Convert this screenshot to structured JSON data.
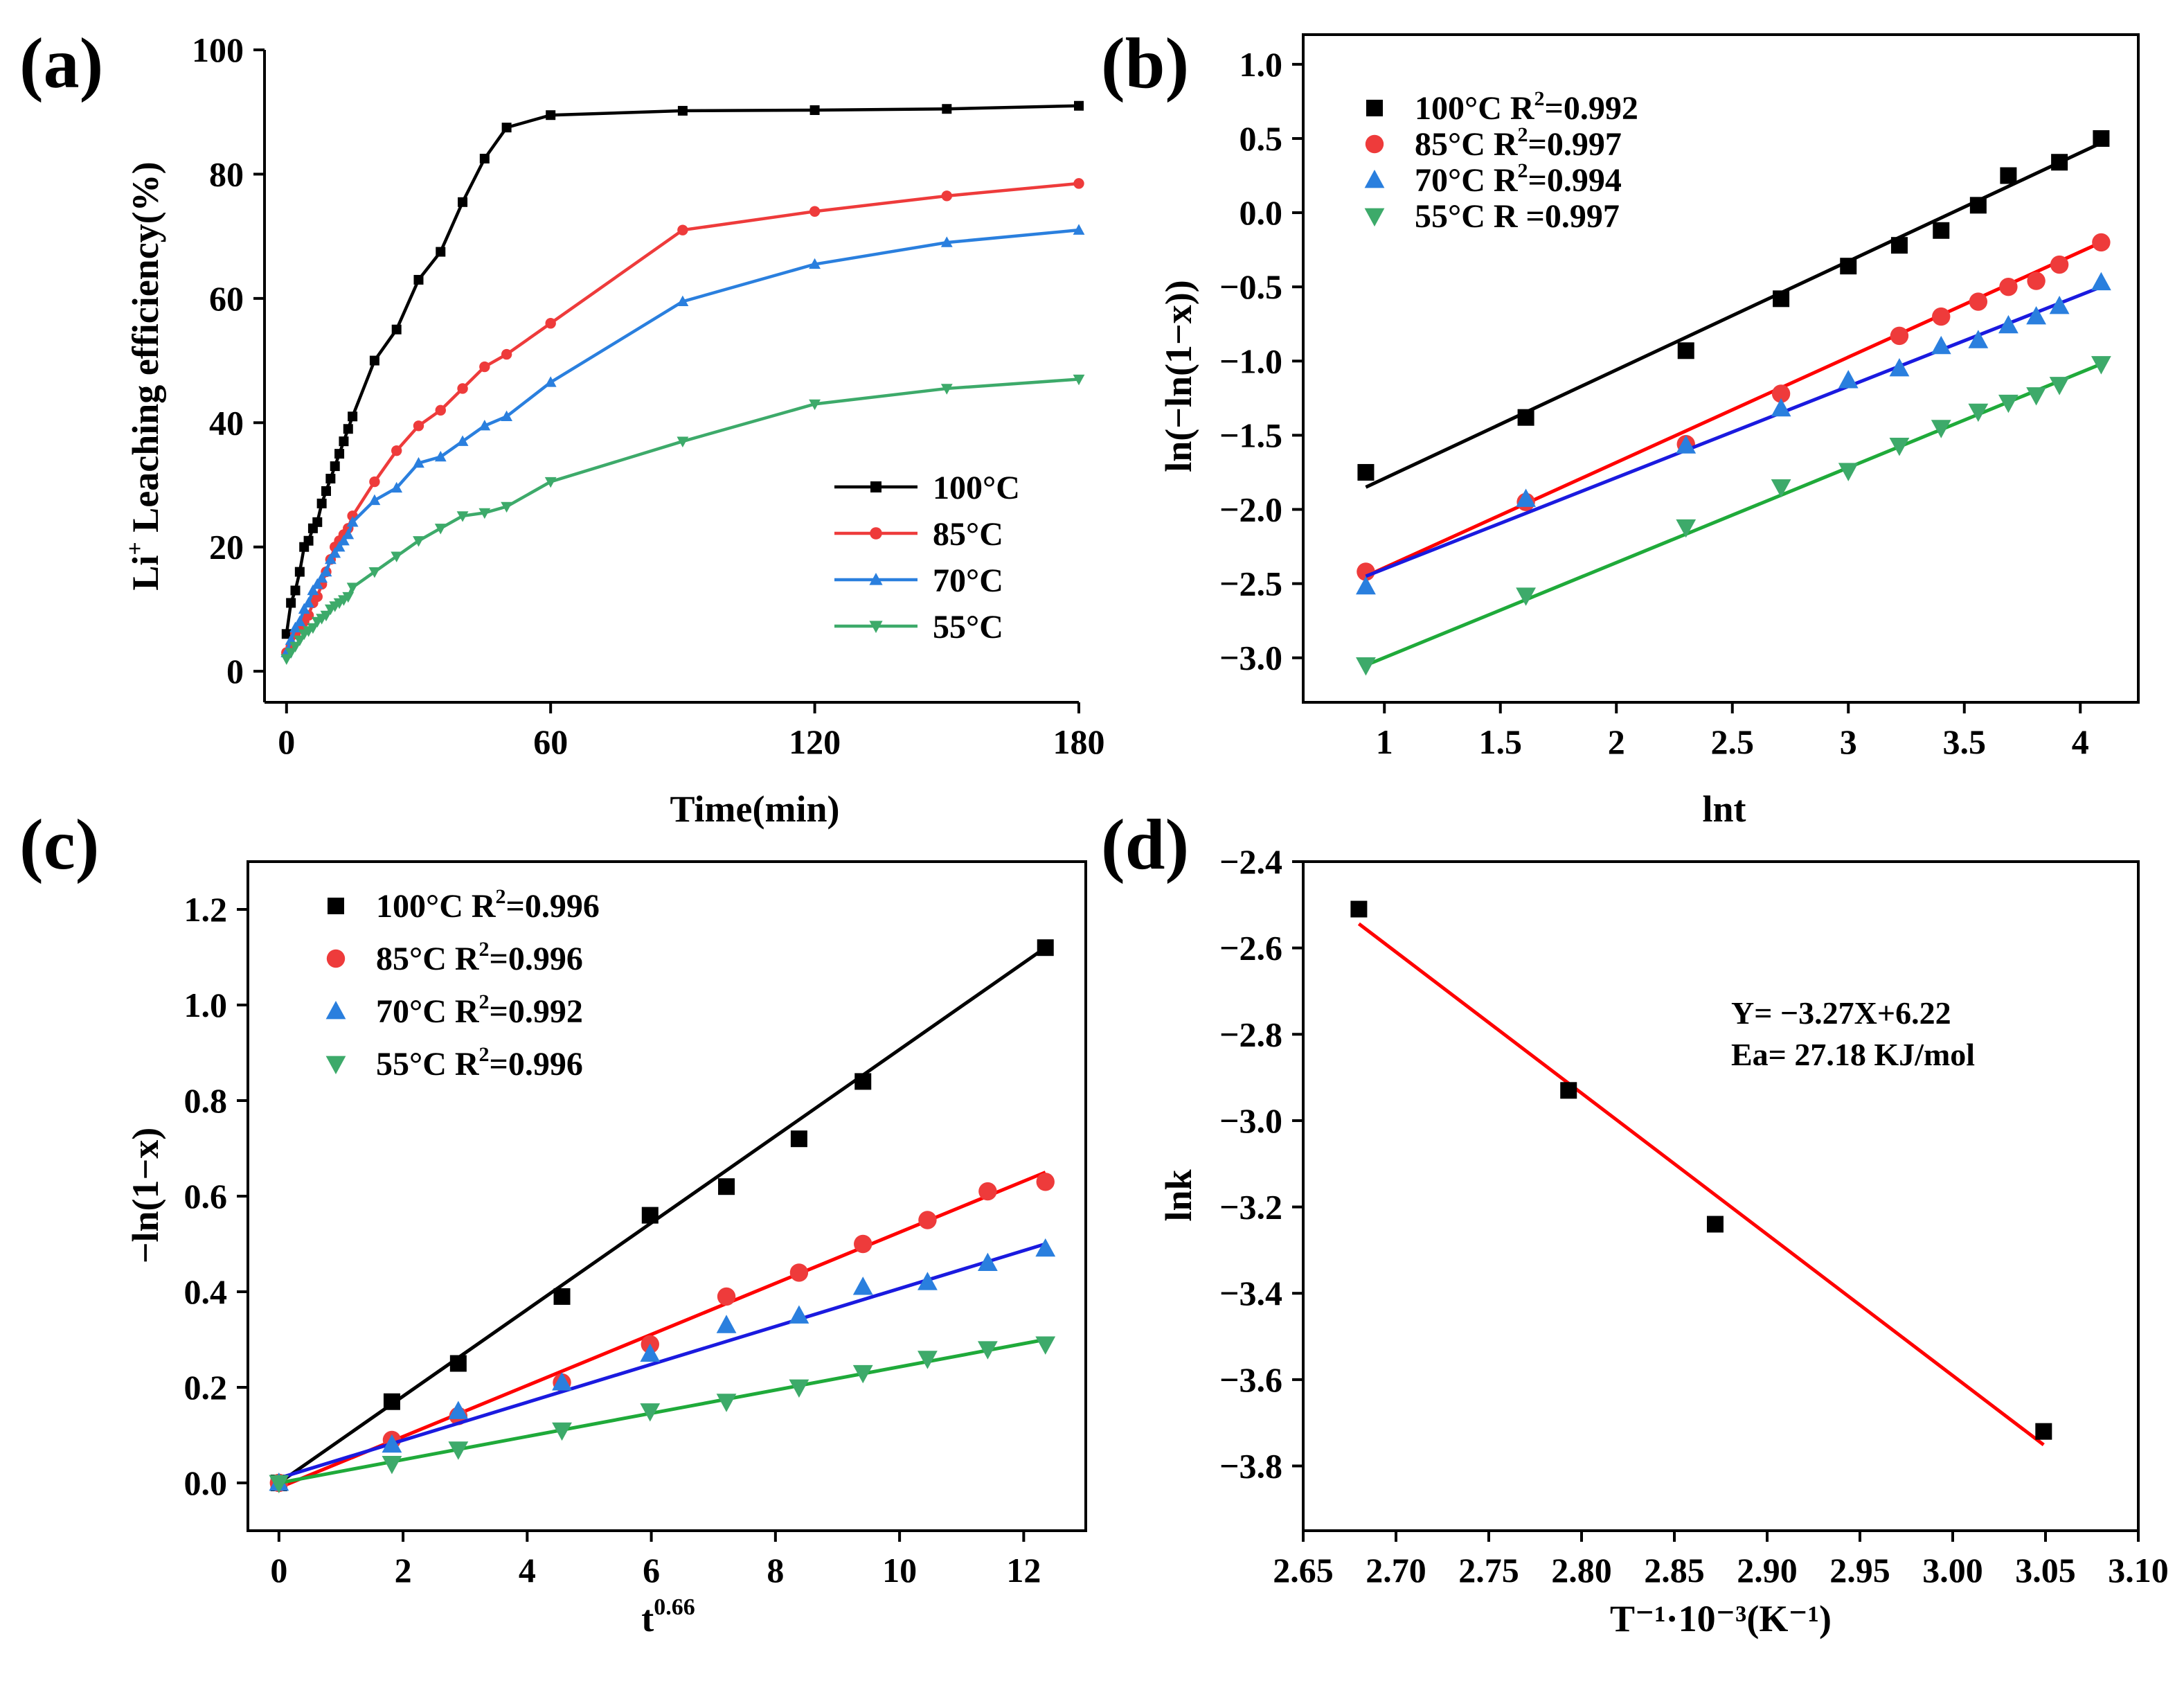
{
  "figure": {
    "colors": {
      "100C": "#000000",
      "85C": "#ee3b3b",
      "70C": "#2a7fde",
      "55C": "#3daa6a",
      "fit_85C": "#ff0000",
      "fit_70C": "#1a1adf",
      "fit_55C": "#1faa3a",
      "arrhenius_fit": "#ff0000"
    }
  },
  "chart_data": [
    {
      "id": "a",
      "panel_label": "(a)",
      "type": "line",
      "xlabel": "Time(min)",
      "ylabel": "Li⁺ Leaching efficiency(%)",
      "ylabel_base": "Li",
      "ylabel_sup": "+",
      "ylabel_rest": " Leaching efficiency(%)",
      "xlim": [
        -5,
        180
      ],
      "ylim": [
        -5,
        100
      ],
      "xticks": [
        0,
        60,
        120,
        180
      ],
      "yticks": [
        0,
        20,
        40,
        60,
        80,
        100
      ],
      "grid": false,
      "legend_position": "bottom-right",
      "series": [
        {
          "name": "100°C",
          "color_key": "100C",
          "marker": "square",
          "x": [
            0,
            1,
            2,
            3,
            4,
            5,
            6,
            7,
            8,
            9,
            10,
            11,
            12,
            13,
            14,
            15,
            20,
            25,
            30,
            35,
            40,
            45,
            50,
            60,
            90,
            120,
            150,
            180
          ],
          "y": [
            6,
            11,
            13,
            16,
            20,
            21,
            23,
            24,
            27,
            29,
            31,
            33,
            35,
            37,
            39,
            41,
            50,
            55,
            63,
            67.5,
            75.5,
            82.5,
            87.5,
            89.5,
            90.2,
            90.3,
            90.5,
            91
          ]
        },
        {
          "name": "85°C",
          "color_key": "85C",
          "marker": "circle",
          "x": [
            0,
            1,
            2,
            3,
            4,
            5,
            6,
            7,
            8,
            9,
            10,
            11,
            12,
            13,
            14,
            15,
            20,
            25,
            30,
            35,
            40,
            45,
            50,
            60,
            90,
            120,
            150,
            180
          ],
          "y": [
            3,
            4,
            6,
            7,
            8,
            9,
            11,
            12,
            14,
            16,
            18,
            20,
            21,
            22,
            23,
            25,
            30.5,
            35.5,
            39.5,
            42,
            45.5,
            49,
            51,
            56,
            71,
            74,
            76.5,
            78.5
          ]
        },
        {
          "name": "70°C",
          "color_key": "70C",
          "marker": "triangle-up",
          "x": [
            0,
            1,
            2,
            3,
            4,
            5,
            6,
            7,
            8,
            9,
            10,
            11,
            12,
            13,
            14,
            15,
            20,
            25,
            30,
            35,
            40,
            45,
            50,
            60,
            90,
            120,
            150,
            180
          ],
          "y": [
            3,
            5,
            7,
            8,
            10,
            11,
            13,
            14,
            15,
            16,
            18,
            19,
            20,
            21,
            22,
            24,
            27.5,
            29.5,
            33.5,
            34.5,
            37,
            39.5,
            41,
            46.5,
            59.5,
            65.5,
            69,
            71
          ]
        },
        {
          "name": "55°C",
          "color_key": "55C",
          "marker": "triangle-down",
          "x": [
            0,
            1,
            2,
            3,
            4,
            5,
            6,
            7,
            8,
            9,
            10,
            11,
            12,
            13,
            14,
            15,
            20,
            25,
            30,
            35,
            40,
            45,
            50,
            60,
            90,
            120,
            150,
            180
          ],
          "y": [
            2,
            3,
            4,
            5,
            6,
            6.5,
            7,
            8,
            8.5,
            9,
            10,
            10.5,
            11,
            11.5,
            12,
            13.5,
            16,
            18.5,
            21,
            23,
            25,
            25.5,
            26.5,
            30.5,
            37,
            43,
            45.5,
            47
          ]
        }
      ]
    },
    {
      "id": "b",
      "panel_label": "(b)",
      "type": "scatter",
      "xlabel": "lnt",
      "ylabel": "ln(−ln(1−x))",
      "xlim": [
        0.65,
        4.25
      ],
      "ylim": [
        -3.3,
        1.2
      ],
      "xticks": [
        1.0,
        1.5,
        2.0,
        2.5,
        3.0,
        3.5,
        4.0
      ],
      "yticks": [
        -3.0,
        -2.5,
        -2.0,
        -1.5,
        -1.0,
        -0.5,
        0.0,
        0.5,
        1.0
      ],
      "tick_decimals": 1,
      "grid": false,
      "legend_position": "top-left",
      "series": [
        {
          "name": "100°C",
          "legend_temp": "100°C",
          "legend_stat": "R",
          "legend_sup": "2",
          "legend_value": "=0.992",
          "color_key": "100C",
          "marker": "square",
          "x": [
            0.92,
            1.61,
            2.3,
            2.71,
            3.0,
            3.22,
            3.4,
            3.56,
            3.69,
            3.91,
            4.09
          ],
          "y": [
            -1.75,
            -1.38,
            -0.93,
            -0.58,
            -0.36,
            -0.22,
            -0.12,
            0.05,
            0.25,
            0.34,
            0.5
          ],
          "fit": {
            "color_key": "100C",
            "x": [
              0.92,
              4.09
            ],
            "y": [
              -1.85,
              0.47
            ]
          }
        },
        {
          "name": "85°C",
          "legend_temp": "85°C",
          "legend_stat": "R",
          "legend_sup": "2",
          "legend_value": "=0.997",
          "color_key": "85C",
          "marker": "circle",
          "x": [
            0.92,
            1.61,
            2.3,
            2.71,
            3.22,
            3.4,
            3.56,
            3.69,
            3.81,
            3.91,
            4.09
          ],
          "y": [
            -2.42,
            -1.95,
            -1.56,
            -1.22,
            -0.83,
            -0.7,
            -0.6,
            -0.5,
            -0.46,
            -0.35,
            -0.2
          ],
          "fit": {
            "color_key": "fit_85C",
            "x": [
              0.92,
              4.09
            ],
            "y": [
              -2.45,
              -0.2
            ]
          }
        },
        {
          "name": "70°C",
          "legend_temp": "70°C",
          "legend_stat": "R",
          "legend_sup": "2",
          "legend_value": "=0.994",
          "color_key": "70C",
          "marker": "triangle-up",
          "x": [
            0.92,
            1.61,
            2.3,
            2.71,
            3.0,
            3.22,
            3.4,
            3.56,
            3.69,
            3.81,
            3.91,
            4.09
          ],
          "y": [
            -2.52,
            -1.93,
            -1.57,
            -1.32,
            -1.13,
            -1.05,
            -0.9,
            -0.86,
            -0.76,
            -0.7,
            -0.63,
            -0.47
          ],
          "fit": {
            "color_key": "fit_70C",
            "x": [
              0.92,
              4.09
            ],
            "y": [
              -2.45,
              -0.5
            ]
          }
        },
        {
          "name": "55°C",
          "legend_temp": "55°C",
          "legend_stat": "R",
          "legend_sup": "",
          "legend_value": " =0.997",
          "color_key": "55C",
          "marker": "triangle-down",
          "x": [
            0.92,
            1.61,
            2.3,
            2.71,
            3.0,
            3.22,
            3.4,
            3.56,
            3.69,
            3.81,
            3.91,
            4.09
          ],
          "y": [
            -3.05,
            -2.58,
            -2.12,
            -1.85,
            -1.74,
            -1.57,
            -1.45,
            -1.34,
            -1.28,
            -1.23,
            -1.16,
            -1.02
          ],
          "fit": {
            "color_key": "fit_55C",
            "x": [
              0.92,
              4.09
            ],
            "y": [
              -3.05,
              -1.02
            ]
          }
        }
      ]
    },
    {
      "id": "c",
      "panel_label": "(c)",
      "type": "scatter",
      "xlabel": "t^0.66",
      "xlabel_base": "t",
      "xlabel_sup": "0.66",
      "ylabel": "−ln(1−x)",
      "xlim": [
        -0.5,
        13
      ],
      "ylim": [
        -0.1,
        1.3
      ],
      "xticks": [
        0,
        2,
        4,
        6,
        8,
        10,
        12
      ],
      "yticks": [
        0.0,
        0.2,
        0.4,
        0.6,
        0.8,
        1.0,
        1.2
      ],
      "tick_decimals": 1,
      "grid": false,
      "legend_position": "top-left",
      "series": [
        {
          "name": "100°C",
          "legend_temp": "100°C",
          "legend_stat": "R",
          "legend_sup": "2",
          "legend_value": "=0.996",
          "color_key": "100C",
          "marker": "square",
          "x": [
            0,
            1.82,
            2.89,
            4.56,
            5.98,
            7.21,
            8.38,
            9.41,
            12.35
          ],
          "y": [
            0,
            0.17,
            0.25,
            0.39,
            0.56,
            0.62,
            0.72,
            0.84,
            1.12
          ],
          "fit": {
            "color_key": "100C",
            "x": [
              0,
              12.35
            ],
            "y": [
              0.0,
              1.12
            ]
          }
        },
        {
          "name": "85°C",
          "legend_temp": "85°C",
          "legend_stat": "R",
          "legend_sup": "2",
          "legend_value": "=0.996",
          "color_key": "85C",
          "marker": "circle",
          "x": [
            0,
            1.82,
            2.89,
            4.56,
            5.98,
            7.21,
            8.38,
            9.41,
            10.45,
            11.42,
            12.35
          ],
          "y": [
            0,
            0.09,
            0.14,
            0.21,
            0.29,
            0.39,
            0.44,
            0.5,
            0.55,
            0.61,
            0.63
          ],
          "fit": {
            "color_key": "fit_85C",
            "x": [
              0,
              12.35
            ],
            "y": [
              -0.01,
              0.65
            ]
          }
        },
        {
          "name": "70°C",
          "legend_temp": "70°C",
          "legend_stat": "R",
          "legend_sup": "2",
          "legend_value": "=0.992",
          "color_key": "70C",
          "marker": "triangle-up",
          "x": [
            0,
            1.82,
            2.89,
            4.56,
            5.98,
            7.21,
            8.38,
            9.41,
            10.45,
            11.42,
            12.35
          ],
          "y": [
            0,
            0.08,
            0.15,
            0.21,
            0.27,
            0.33,
            0.35,
            0.41,
            0.42,
            0.46,
            0.49
          ],
          "fit": {
            "color_key": "fit_70C",
            "x": [
              0,
              12.35
            ],
            "y": [
              0.01,
              0.5
            ]
          }
        },
        {
          "name": "55°C",
          "legend_temp": "55°C",
          "legend_stat": "R",
          "legend_sup": "2",
          "legend_value": "=0.996",
          "color_key": "55C",
          "marker": "triangle-down",
          "x": [
            0,
            1.82,
            2.89,
            4.56,
            5.98,
            7.21,
            8.38,
            9.41,
            10.45,
            11.42,
            12.35
          ],
          "y": [
            0,
            0.04,
            0.07,
            0.11,
            0.15,
            0.17,
            0.2,
            0.23,
            0.26,
            0.28,
            0.29
          ],
          "fit": {
            "color_key": "fit_55C",
            "x": [
              0,
              12.35
            ],
            "y": [
              0.0,
              0.3
            ]
          }
        }
      ]
    },
    {
      "id": "d",
      "panel_label": "(d)",
      "type": "scatter",
      "xlabel": "T⁻¹·10⁻³(K⁻¹)",
      "ylabel": "lnk",
      "xlim": [
        2.65,
        3.1
      ],
      "ylim": [
        -3.95,
        -2.4
      ],
      "xticks": [
        2.65,
        2.7,
        2.75,
        2.8,
        2.85,
        2.9,
        2.95,
        3.0,
        3.05,
        3.1
      ],
      "yticks": [
        -3.8,
        -3.6,
        -3.4,
        -3.2,
        -3.0,
        -2.8,
        -2.6,
        -2.4
      ],
      "xtick_decimals": 2,
      "tick_decimals": 1,
      "grid": false,
      "legend_position": "none",
      "annotations": [
        "Y= −3.27X+6.22",
        "Ea= 27.18 KJ/mol"
      ],
      "series": [
        {
          "name": "",
          "color_key": "100C",
          "marker": "square",
          "x": [
            2.68,
            2.793,
            2.872,
            3.049
          ],
          "y": [
            -2.51,
            -2.93,
            -3.24,
            -3.72
          ],
          "fit": {
            "color_key": "arrhenius_fit",
            "x": [
              2.68,
              3.049
            ],
            "y": [
              -2.544,
              -3.751
            ]
          }
        }
      ]
    }
  ]
}
